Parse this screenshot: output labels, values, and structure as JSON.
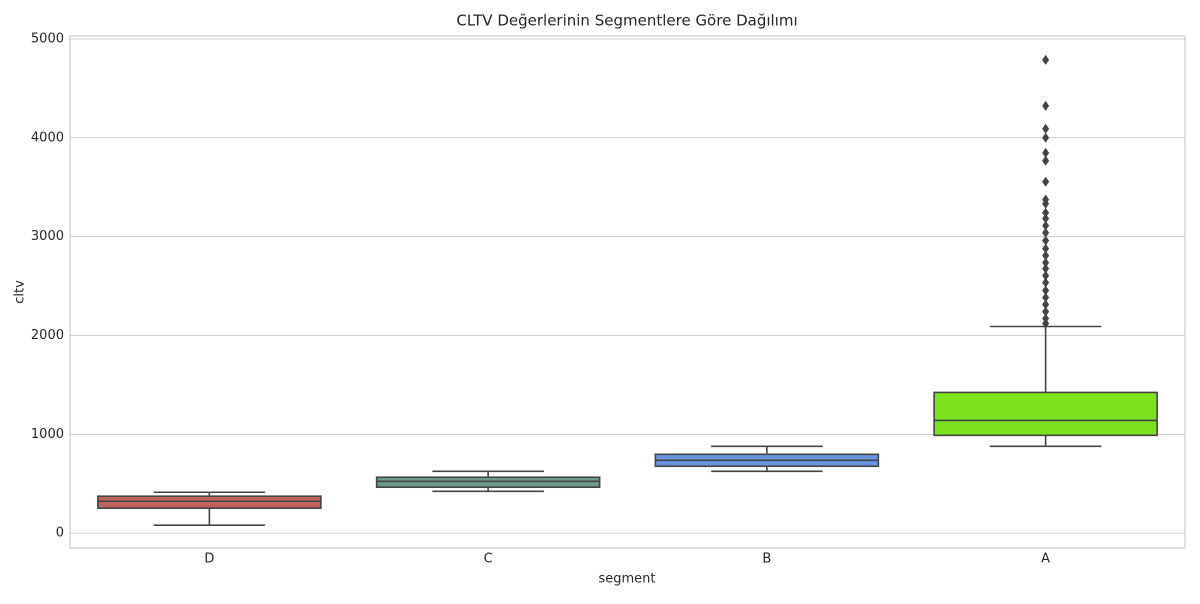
{
  "chart_data": {
    "type": "box",
    "title": "CLTV Değerlerinin Segmentlere Göre Dağılımı",
    "x_label": "segment",
    "y_label": "cltv",
    "categories": [
      "D",
      "C",
      "B",
      "A"
    ],
    "colors": [
      "#c2625f",
      "#6e9a8e",
      "#6a93e0",
      "#7de31c"
    ],
    "boxes": [
      {
        "whisker_low": 81,
        "q1": 253,
        "median": 323,
        "q3": 374,
        "whisker_high": 414,
        "outliers": []
      },
      {
        "whisker_low": 424,
        "q1": 465,
        "median": 525,
        "q3": 566,
        "whisker_high": 626,
        "outliers": []
      },
      {
        "whisker_low": 626,
        "q1": 677,
        "median": 737,
        "q3": 798,
        "whisker_high": 879,
        "outliers": []
      },
      {
        "whisker_low": 879,
        "q1": 990,
        "median": 1141,
        "q3": 1424,
        "whisker_high": 2091,
        "outliers": [
          4788,
          4323,
          4091,
          4000,
          3848,
          3768,
          3556,
          3374,
          3333,
          3242,
          3182,
          3111,
          3040,
          2960,
          2879,
          2808,
          2737,
          2677,
          2606,
          2535,
          2455,
          2384,
          2313,
          2242,
          2172,
          2121
        ]
      }
    ],
    "ylim": [
      -150,
      5030
    ],
    "yticks": [
      0,
      1000,
      2000,
      3000,
      4000,
      5000
    ],
    "grid": true
  }
}
